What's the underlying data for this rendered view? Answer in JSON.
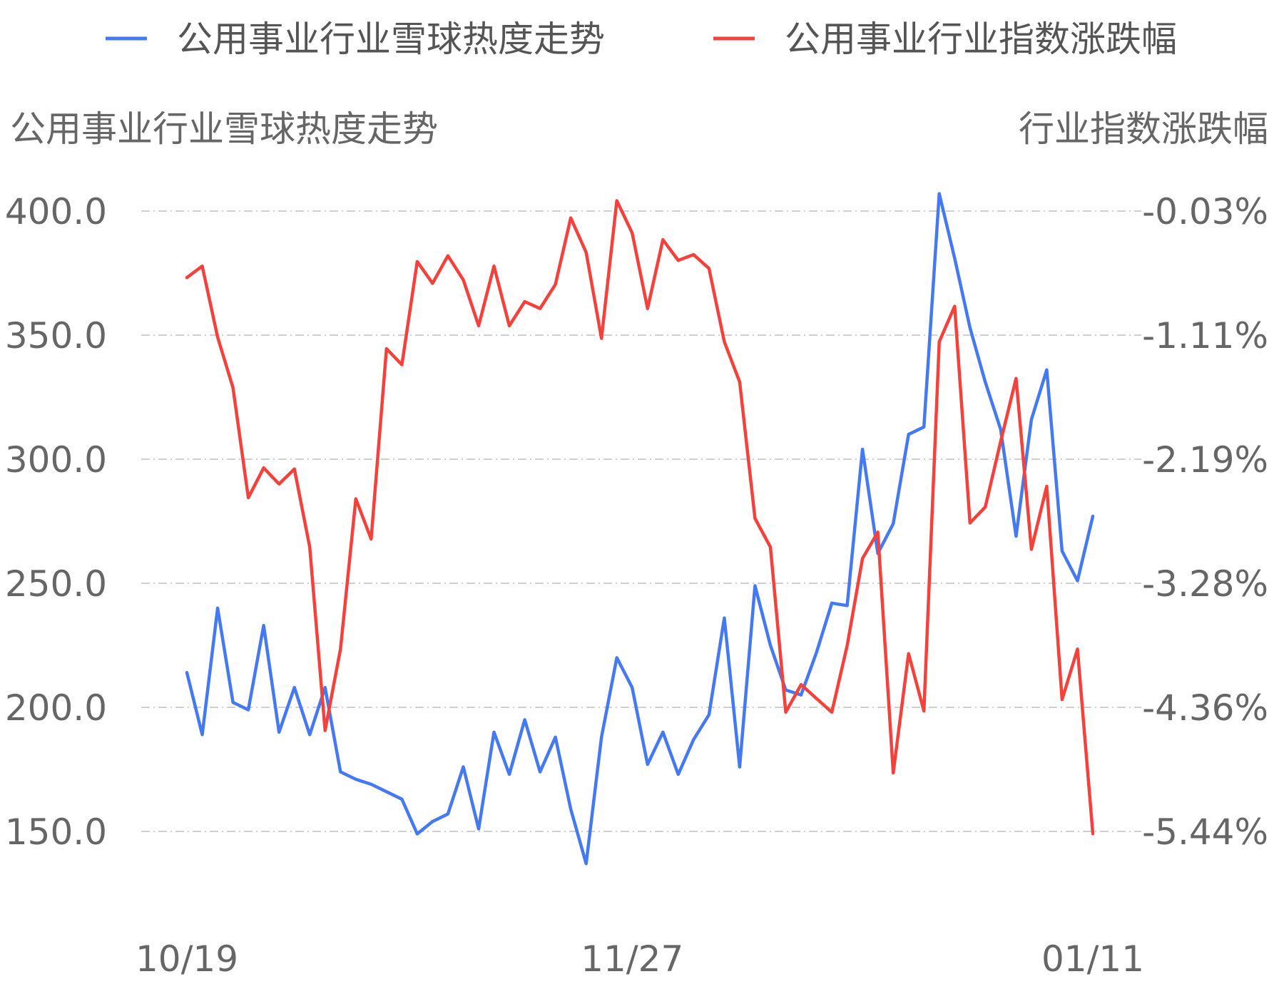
{
  "chart_data": {
    "type": "line",
    "legend_position": "top-center",
    "grid": true,
    "title": "",
    "left_axis_title": "公用事业行业雪球热度走势",
    "right_axis_title": "行业指数涨跌幅",
    "x_tick_labels": [
      "10/19",
      "11/27",
      "01/11"
    ],
    "left_ticks": [
      "400.0",
      "350.0",
      "300.0",
      "250.0",
      "200.0",
      "150.0"
    ],
    "right_ticks": [
      "-0.03%",
      "-1.11%",
      "-2.19%",
      "-3.28%",
      "-4.36%",
      "-5.44%"
    ],
    "left_ylim": [
      150,
      400
    ],
    "right_ylim": [
      -5.44,
      -0.03
    ],
    "series": [
      {
        "name": "公用事业行业雪球热度走势",
        "axis": "left",
        "color": "#4479f2",
        "values": [
          214,
          189,
          240,
          202,
          199,
          233,
          190,
          208,
          189,
          208,
          174,
          171,
          169,
          166,
          163,
          149,
          154,
          157,
          176,
          151,
          190,
          173,
          195,
          174,
          188,
          159,
          137,
          188,
          220,
          208,
          177,
          190,
          173,
          187,
          197,
          236,
          176,
          249,
          225,
          207,
          205,
          222,
          242,
          241,
          304,
          262,
          274,
          310,
          313,
          407,
          381,
          353,
          331,
          312,
          269,
          316,
          336,
          263,
          251,
          277
        ]
      },
      {
        "name": "公用事业行业指数涨跌幅",
        "axis": "right",
        "color": "#f4413c",
        "values": [
          -0.61,
          -0.51,
          -1.13,
          -1.57,
          -2.53,
          -2.27,
          -2.41,
          -2.28,
          -2.96,
          -4.56,
          -3.85,
          -2.54,
          -2.89,
          -1.23,
          -1.37,
          -0.47,
          -0.66,
          -0.42,
          -0.63,
          -1.03,
          -0.51,
          -1.03,
          -0.82,
          -0.88,
          -0.67,
          -0.09,
          -0.39,
          -1.14,
          0.06,
          -0.22,
          -0.88,
          -0.28,
          -0.46,
          -0.41,
          -0.53,
          -1.17,
          -1.52,
          -2.71,
          -2.96,
          -4.4,
          -4.16,
          -4.28,
          -4.4,
          -3.82,
          -3.06,
          -2.83,
          -4.93,
          -3.89,
          -4.39,
          -1.17,
          -0.86,
          -2.75,
          -2.61,
          -2.04,
          -1.49,
          -2.98,
          -2.43,
          -4.29,
          -3.85,
          -5.46
        ]
      }
    ]
  }
}
